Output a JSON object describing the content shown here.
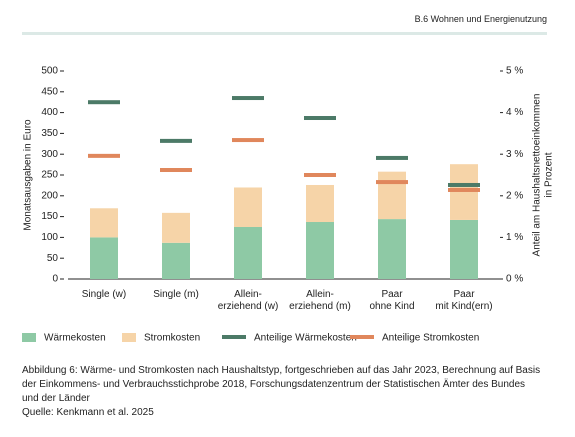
{
  "header": "B.6 Wohnen und Energienutzung",
  "chart_data": {
    "type": "bar",
    "categories": [
      "Single (w)",
      "Single (m)",
      "Allein-\nerziehend (w)",
      "Allein-\nerziehend (m)",
      "Paar\nohne Kind",
      "Paar\nmit Kind(ern)"
    ],
    "ylabel": "Monatsausgaben in Euro",
    "y2label": [
      "Anteil am Haushaltsnettoeinkommen",
      "in Prozent"
    ],
    "ylim": [
      0,
      500
    ],
    "yticks": [
      0,
      50,
      100,
      150,
      200,
      250,
      300,
      350,
      400,
      450,
      500
    ],
    "y2lim": [
      0,
      5
    ],
    "y2ticks": [
      {
        "value": 0,
        "label": "0 %"
      },
      {
        "value": 1,
        "label": "1 %"
      },
      {
        "value": 2,
        "label": "2 %"
      },
      {
        "value": 3,
        "label": "3 %"
      },
      {
        "value": 4,
        "label": "4 %"
      },
      {
        "value": 5,
        "label": "5 %"
      }
    ],
    "grid": false,
    "series": [
      {
        "name": "Wärmekosten",
        "color": "#8ec9a5",
        "values": [
          100,
          87,
          125,
          137,
          144,
          142
        ]
      },
      {
        "name": "Stromkosten",
        "color": "#f6d4a8",
        "values": [
          70,
          72,
          95,
          89,
          114,
          134
        ]
      },
      {
        "name": "Anteilige Wärmekosten",
        "color": "#4c7a67",
        "axis": "y2",
        "values": [
          4.25,
          3.32,
          4.35,
          3.87,
          2.91,
          2.26
        ]
      },
      {
        "name": "Anteilige Stromkosten",
        "color": "#e0875c",
        "axis": "y2",
        "values": [
          2.96,
          2.62,
          3.34,
          2.5,
          2.33,
          2.14
        ]
      }
    ]
  },
  "caption": [
    "Abbildung 6: Wärme- und Stromkosten nach Haushaltstyp, fortgeschrieben auf das Jahr 2023, Berechnung auf Basis der Einkommens- und Verbrauchsstichprobe 2018, Forschungsdatenzentrum der Statistischen Ämter des Bundes und der Länder",
    "Quelle: Kenkmann et al. 2025"
  ]
}
